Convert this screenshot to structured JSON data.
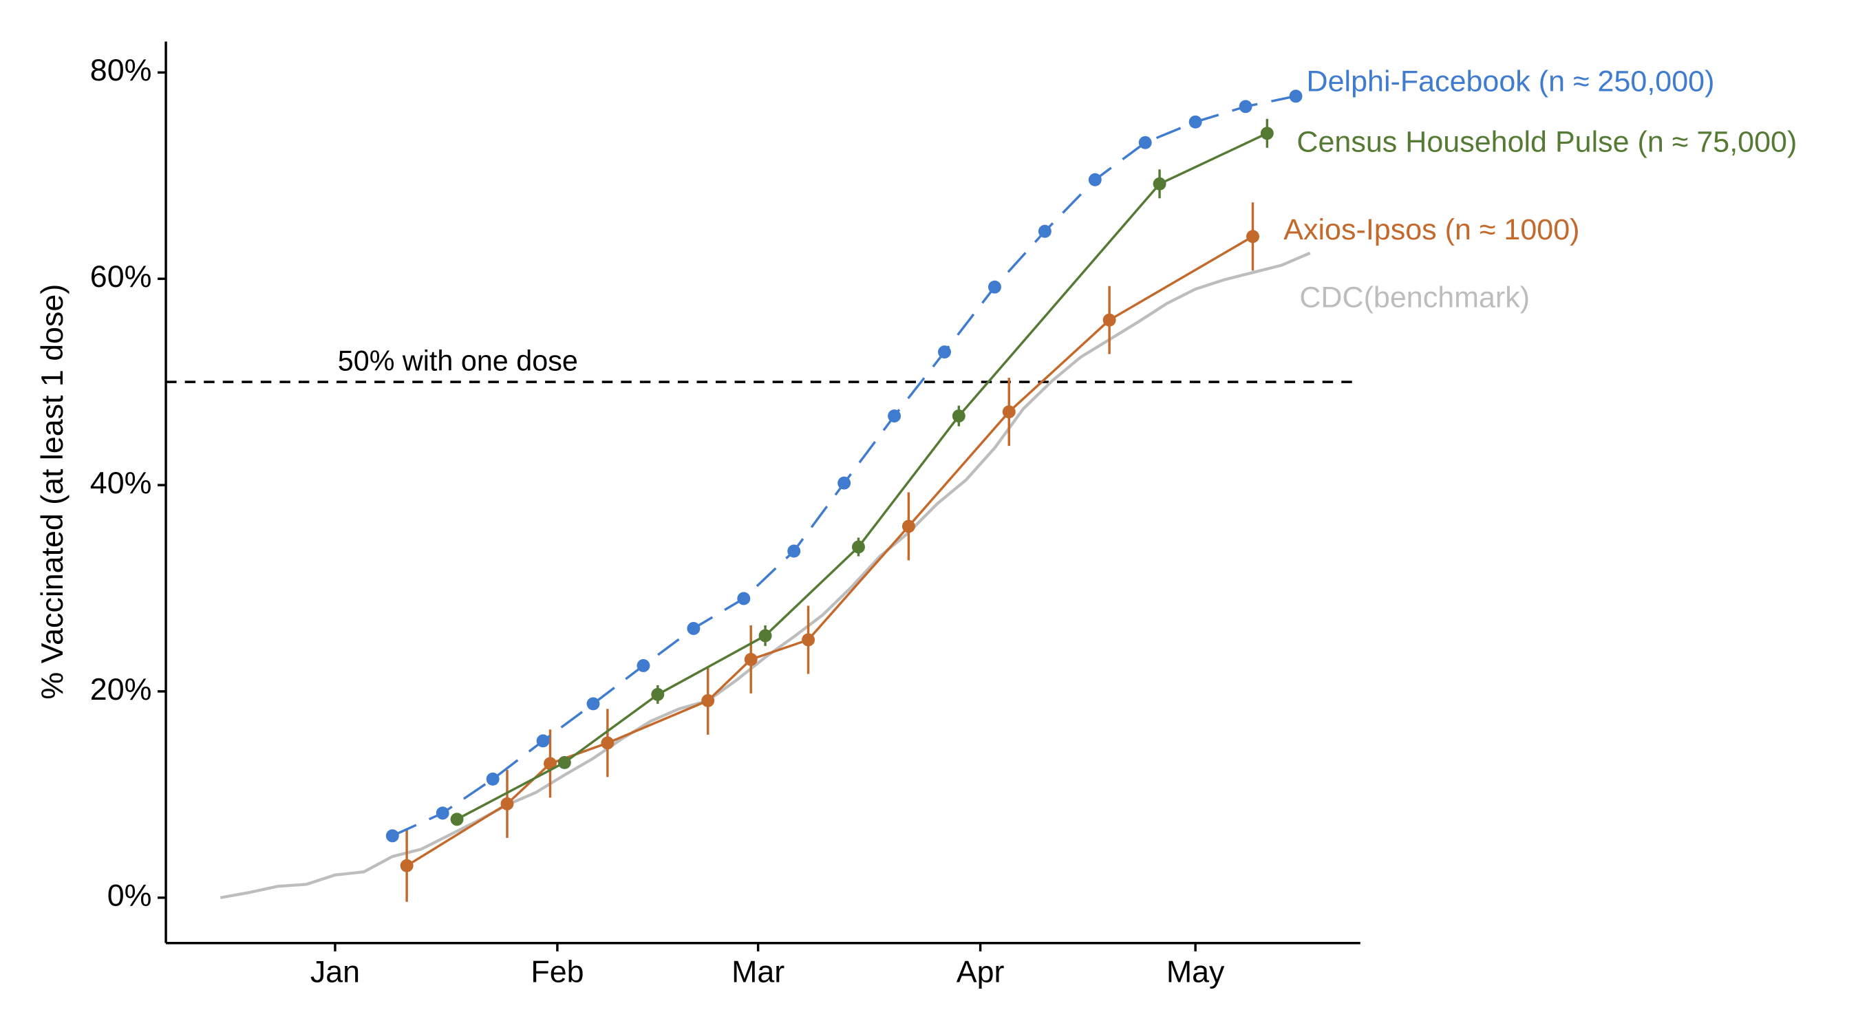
{
  "chart_data": {
    "type": "line",
    "y_label": "% Vaccinated (at least 1 dose)",
    "xlim": [
      -23.6,
      143
    ],
    "xticks": [
      {
        "value": 0,
        "label": "Jan"
      },
      {
        "value": 31,
        "label": "Feb"
      },
      {
        "value": 59,
        "label": "Mar"
      },
      {
        "value": 90,
        "label": "Apr"
      },
      {
        "value": 120,
        "label": "May"
      }
    ],
    "ylim": [
      -4.4,
      83
    ],
    "yticks": [
      {
        "value": 0,
        "label": "0%"
      },
      {
        "value": 20,
        "label": "20%"
      },
      {
        "value": 40,
        "label": "40%"
      },
      {
        "value": 60,
        "label": "60%"
      },
      {
        "value": 80,
        "label": "80%"
      }
    ],
    "hline": {
      "value": 50,
      "label": "50% with one dose"
    },
    "series": [
      {
        "name": "Delphi-Facebook (n ≈ 250,000)",
        "color": "#3f7bcf",
        "dashed": true,
        "markers": true,
        "x": [
          8,
          15,
          22,
          29,
          36,
          43,
          50,
          57,
          64,
          71,
          78,
          85,
          92,
          99,
          106,
          113,
          120,
          127,
          134
        ],
        "values": [
          6.0,
          8.2,
          11.5,
          15.2,
          18.8,
          22.5,
          26.1,
          29.0,
          33.6,
          40.2,
          46.7,
          52.9,
          59.2,
          64.6,
          69.6,
          73.2,
          75.2,
          76.7,
          77.7
        ]
      },
      {
        "name": "Census Household Pulse (n ≈ 75,000)",
        "color": "#557a34",
        "dashed": false,
        "markers": true,
        "x": [
          17,
          32,
          45,
          60,
          73,
          87,
          115,
          130
        ],
        "values": [
          7.6,
          13.1,
          19.7,
          25.4,
          34.0,
          46.7,
          69.2,
          74.1
        ],
        "error": [
          0.6,
          0.6,
          0.9,
          1.0,
          0.9,
          1.0,
          1.4,
          1.4
        ]
      },
      {
        "name": "Axios-Ipsos (n ≈ 1000)",
        "color": "#c3692b",
        "dashed": false,
        "markers": true,
        "x": [
          10,
          24,
          30,
          38,
          52,
          58,
          66,
          80,
          94,
          108,
          128
        ],
        "values": [
          3.1,
          9.1,
          13.0,
          15.0,
          19.1,
          23.1,
          25.0,
          36.0,
          47.1,
          56.0,
          64.1
        ],
        "error": [
          3.5,
          3.3,
          3.3,
          3.3,
          3.3,
          3.3,
          3.3,
          3.3,
          3.3,
          3.3,
          3.3
        ]
      },
      {
        "name": "CDC(benchmark)",
        "color": "#bdbdbd",
        "dashed": false,
        "markers": false,
        "x": [
          -16,
          -12,
          -8,
          -4,
          0,
          4,
          8,
          12,
          16,
          20,
          24,
          28,
          32,
          36,
          40,
          44,
          48,
          52,
          56,
          60,
          64,
          68,
          72,
          76,
          80,
          84,
          88,
          92,
          96,
          100,
          104,
          108,
          112,
          116,
          120,
          124,
          128,
          132,
          136
        ],
        "values": [
          0.0,
          0.5,
          1.1,
          1.3,
          2.2,
          2.5,
          4.0,
          4.7,
          6.1,
          7.5,
          9.0,
          10.2,
          11.9,
          13.5,
          15.4,
          17.1,
          18.3,
          19.1,
          21.1,
          23.3,
          25.3,
          27.4,
          30.1,
          33.1,
          35.4,
          38.2,
          40.5,
          43.6,
          47.4,
          50.1,
          52.4,
          54.1,
          55.8,
          57.6,
          59.0,
          59.9,
          60.6,
          61.3,
          62.5
        ]
      }
    ]
  }
}
